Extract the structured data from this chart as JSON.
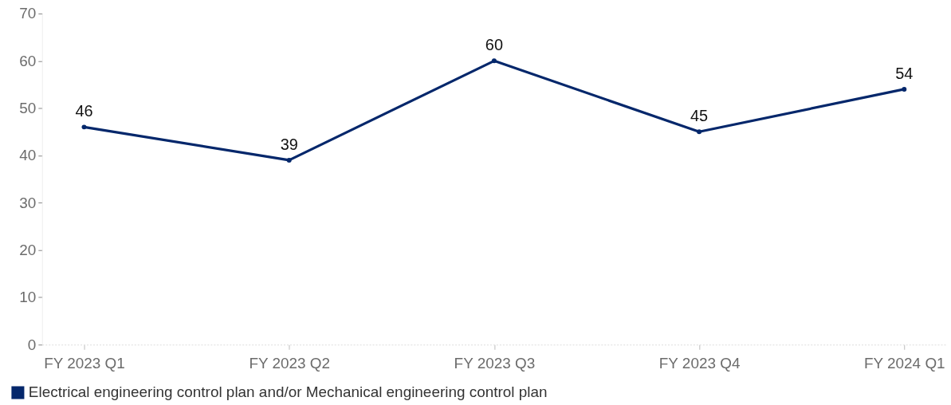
{
  "chart_data": {
    "type": "line",
    "categories": [
      "FY 2023 Q1",
      "FY 2023 Q2",
      "FY 2023 Q3",
      "FY 2023 Q4",
      "FY 2024 Q1"
    ],
    "series": [
      {
        "name": "Electrical engineering control plan and/or Mechanical engineering control plan",
        "color": "#04276b",
        "values": [
          46,
          39,
          60,
          45,
          54
        ]
      }
    ],
    "ylim": [
      0,
      70
    ],
    "yticks": [
      0,
      10,
      20,
      30,
      40,
      50,
      60,
      70
    ],
    "data_labels": true,
    "legend": "bottom left",
    "marker": "circle",
    "line_style": "solid",
    "grid": false
  }
}
